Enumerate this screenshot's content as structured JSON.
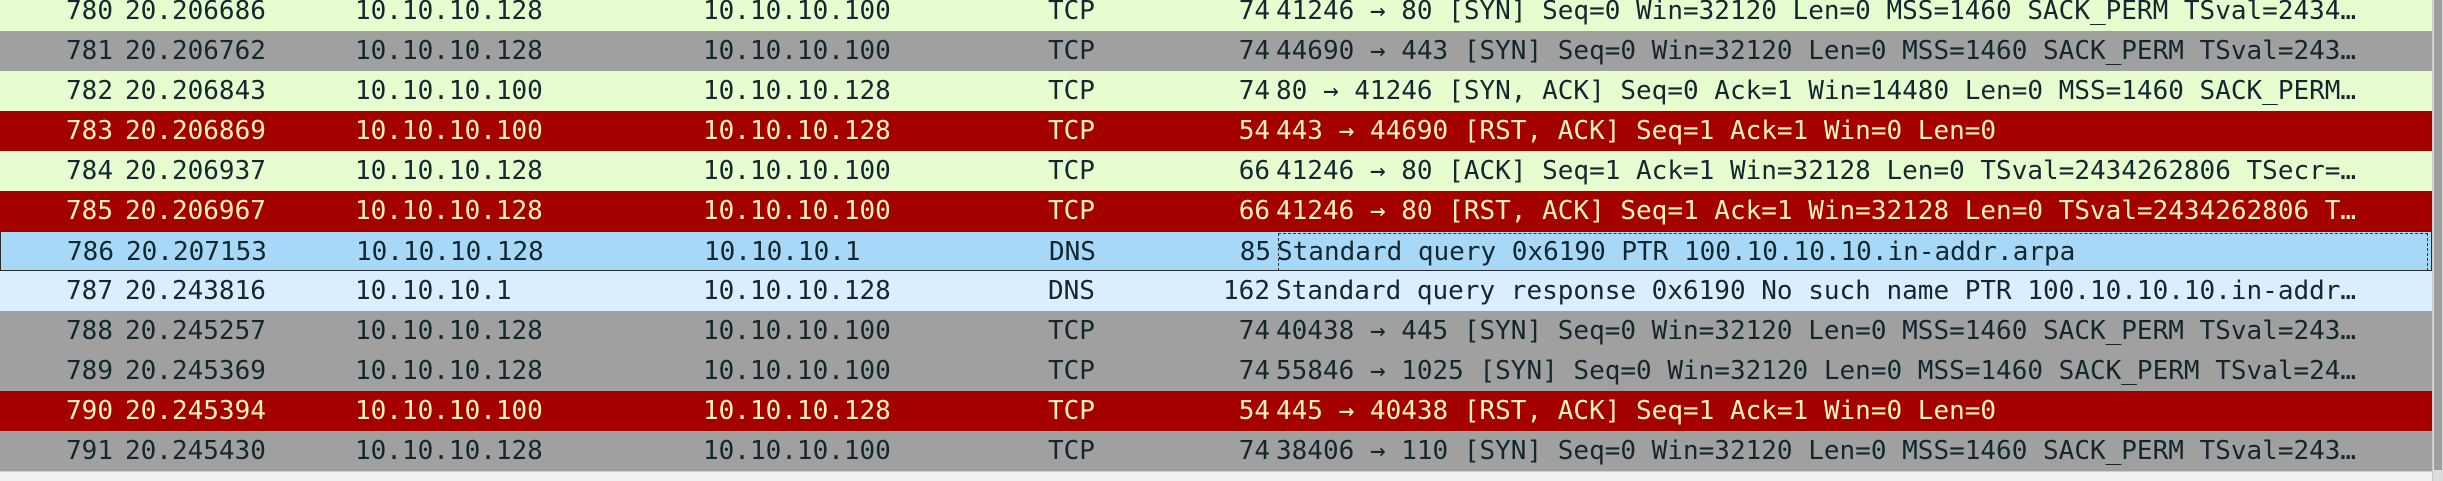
{
  "colors": {
    "tcp_green": "#e7fdd0",
    "gray": "#a0a0a0",
    "rst_red": "#a40000",
    "rst_text": "#fff6b5",
    "dns_blue": "#a8d8f8",
    "dns_light": "#d9efff",
    "text": "#12272e"
  },
  "packets": [
    {
      "no": "780",
      "time": "20.206686",
      "src": "10.10.10.128",
      "dst": "10.10.10.100",
      "proto": "TCP",
      "len": "74",
      "info": "41246 → 80 [SYN] Seq=0 Win=32120 Len=0 MSS=1460 SACK_PERM TSval=2434…",
      "style": "tcp_green"
    },
    {
      "no": "781",
      "time": "20.206762",
      "src": "10.10.10.128",
      "dst": "10.10.10.100",
      "proto": "TCP",
      "len": "74",
      "info": "44690 → 443 [SYN] Seq=0 Win=32120 Len=0 MSS=1460 SACK_PERM TSval=243…",
      "style": "gray"
    },
    {
      "no": "782",
      "time": "20.206843",
      "src": "10.10.10.100",
      "dst": "10.10.10.128",
      "proto": "TCP",
      "len": "74",
      "info": "80 → 41246 [SYN, ACK] Seq=0 Ack=1 Win=14480 Len=0 MSS=1460 SACK_PERM…",
      "style": "tcp_green"
    },
    {
      "no": "783",
      "time": "20.206869",
      "src": "10.10.10.100",
      "dst": "10.10.10.128",
      "proto": "TCP",
      "len": "54",
      "info": "443 → 44690 [RST, ACK] Seq=1 Ack=1 Win=0 Len=0",
      "style": "rst_red"
    },
    {
      "no": "784",
      "time": "20.206937",
      "src": "10.10.10.128",
      "dst": "10.10.10.100",
      "proto": "TCP",
      "len": "66",
      "info": "41246 → 80 [ACK] Seq=1 Ack=1 Win=32128 Len=0 TSval=2434262806 TSecr=…",
      "style": "tcp_green"
    },
    {
      "no": "785",
      "time": "20.206967",
      "src": "10.10.10.128",
      "dst": "10.10.10.100",
      "proto": "TCP",
      "len": "66",
      "info": "41246 → 80 [RST, ACK] Seq=1 Ack=1 Win=32128 Len=0 TSval=2434262806 T…",
      "style": "rst_red"
    },
    {
      "no": "786",
      "time": "20.207153",
      "src": "10.10.10.128",
      "dst": "10.10.10.1",
      "proto": "DNS",
      "len": "85",
      "info": "Standard query 0x6190 PTR 100.10.10.10.in-addr.arpa",
      "style": "dns_blue",
      "selected": true
    },
    {
      "no": "787",
      "time": "20.243816",
      "src": "10.10.10.1",
      "dst": "10.10.10.128",
      "proto": "DNS",
      "len": "162",
      "info": "Standard query response 0x6190 No such name PTR 100.10.10.10.in-addr…",
      "style": "dns_light"
    },
    {
      "no": "788",
      "time": "20.245257",
      "src": "10.10.10.128",
      "dst": "10.10.10.100",
      "proto": "TCP",
      "len": "74",
      "info": "40438 → 445 [SYN] Seq=0 Win=32120 Len=0 MSS=1460 SACK_PERM TSval=243…",
      "style": "gray"
    },
    {
      "no": "789",
      "time": "20.245369",
      "src": "10.10.10.128",
      "dst": "10.10.10.100",
      "proto": "TCP",
      "len": "74",
      "info": "55846 → 1025 [SYN] Seq=0 Win=32120 Len=0 MSS=1460 SACK_PERM TSval=24…",
      "style": "gray"
    },
    {
      "no": "790",
      "time": "20.245394",
      "src": "10.10.10.100",
      "dst": "10.10.10.128",
      "proto": "TCP",
      "len": "54",
      "info": "445 → 40438 [RST, ACK] Seq=1 Ack=1 Win=0 Len=0",
      "style": "rst_red"
    },
    {
      "no": "791",
      "time": "20.245430",
      "src": "10.10.10.128",
      "dst": "10.10.10.100",
      "proto": "TCP",
      "len": "74",
      "info": "38406 → 110 [SYN] Seq=0 Win=32120 Len=0 MSS=1460 SACK_PERM TSval=243…",
      "style": "gray"
    }
  ]
}
